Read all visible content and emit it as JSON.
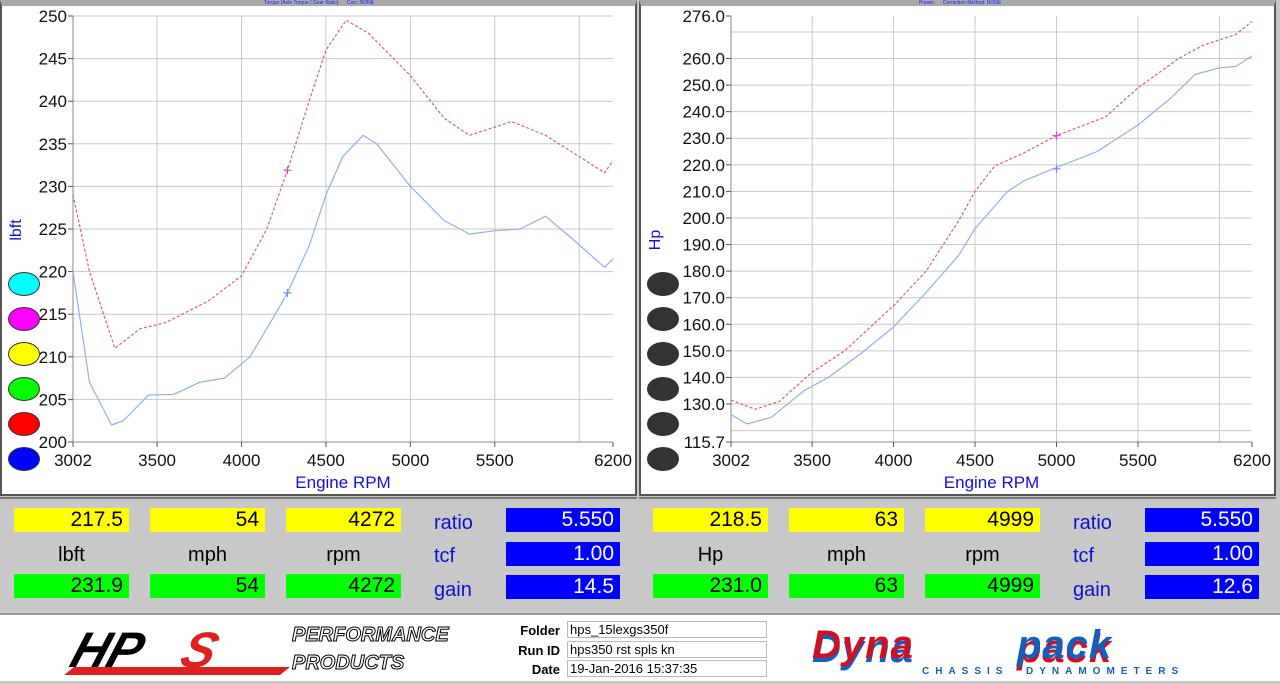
{
  "charts": [
    {
      "id": "left",
      "header": "Torque (Axle Torque / Gear Ratio)      Corr: NONE",
      "ylabel": "lbft",
      "xlabel": "Engine RPM",
      "xlim": [
        3002,
        6200
      ],
      "xticks": [
        "3002",
        "3500",
        "4000",
        "4500",
        "5000",
        "5500",
        "6200"
      ],
      "xgrid": [
        3500,
        4000,
        4500,
        5000,
        5500,
        6000
      ],
      "ylim": [
        200,
        250
      ],
      "yticks": [
        "250",
        "245",
        "240",
        "235",
        "230",
        "225",
        "220",
        "215",
        "210",
        "205",
        "200"
      ],
      "ygrid": [
        205,
        210,
        215,
        220,
        225,
        230,
        235,
        240,
        245,
        250
      ],
      "dot_colors": [
        "#00ffff",
        "#ff00ff",
        "#ffff00",
        "#00ff00",
        "#ff0000",
        "#0000ff"
      ],
      "series": [
        {
          "color": "#e06060",
          "dash": true,
          "points": [
            [
              3002,
              229
            ],
            [
              3100,
              220
            ],
            [
              3250,
              211
            ],
            [
              3400,
              213.3
            ],
            [
              3550,
              214
            ],
            [
              3800,
              216.5
            ],
            [
              4000,
              219.5
            ],
            [
              4150,
              225
            ],
            [
              4272,
              231.9
            ],
            [
              4400,
              240
            ],
            [
              4500,
              246
            ],
            [
              4620,
              249.5
            ],
            [
              4750,
              248
            ],
            [
              5000,
              243
            ],
            [
              5200,
              238
            ],
            [
              5350,
              236
            ],
            [
              5600,
              237.6
            ],
            [
              5800,
              236
            ],
            [
              6000,
              233.5
            ],
            [
              6150,
              231.6
            ],
            [
              6200,
              233
            ]
          ]
        },
        {
          "color": "#8fb0ee",
          "dash": false,
          "points": [
            [
              3002,
              220
            ],
            [
              3100,
              207
            ],
            [
              3230,
              202
            ],
            [
              3300,
              202.5
            ],
            [
              3450,
              205.5
            ],
            [
              3600,
              205.6
            ],
            [
              3750,
              207
            ],
            [
              3900,
              207.5
            ],
            [
              4050,
              210
            ],
            [
              4200,
              215
            ],
            [
              4272,
              217.5
            ],
            [
              4400,
              223
            ],
            [
              4500,
              229
            ],
            [
              4600,
              233.5
            ],
            [
              4720,
              236
            ],
            [
              4800,
              235
            ],
            [
              5000,
              230
            ],
            [
              5200,
              226
            ],
            [
              5350,
              224.4
            ],
            [
              5500,
              224.8
            ],
            [
              5650,
              225
            ],
            [
              5800,
              226.5
            ],
            [
              5950,
              224
            ],
            [
              6150,
              220.5
            ],
            [
              6200,
              221.5
            ]
          ]
        }
      ],
      "cursor": [
        [
          4272,
          231.9,
          "#e040e0"
        ],
        [
          4272,
          217.5,
          "#8080ff"
        ]
      ]
    },
    {
      "id": "right",
      "header": "Power:      Correction Method: NONE",
      "ylabel": "Hp",
      "xlabel": "Engine RPM",
      "xlim": [
        3002,
        6200
      ],
      "xticks": [
        "3002",
        "3500",
        "4000",
        "4500",
        "5000",
        "5500",
        "6200"
      ],
      "xgrid": [
        3500,
        4000,
        4500,
        5000,
        5500,
        6000
      ],
      "ylim": [
        115.7,
        276.0
      ],
      "yticks": [
        "276.0",
        "260.0",
        "250.0",
        "240.0",
        "230.0",
        "220.0",
        "210.0",
        "200.0",
        "190.0",
        "180.0",
        "170.0",
        "160.0",
        "150.0",
        "140.0",
        "130.0",
        "115.7"
      ],
      "ygrid": [
        120,
        130,
        140,
        150,
        160,
        170,
        180,
        190,
        200,
        210,
        220,
        230,
        240,
        250,
        260,
        270
      ],
      "dot_colors": [
        "#333333",
        "#333333",
        "#333333",
        "#333333",
        "#333333",
        "#333333"
      ],
      "series": [
        {
          "color": "#e06060",
          "dash": true,
          "points": [
            [
              3002,
              131.5
            ],
            [
              3150,
              128
            ],
            [
              3300,
              131
            ],
            [
              3500,
              142
            ],
            [
              3700,
              150
            ],
            [
              4000,
              167
            ],
            [
              4200,
              180
            ],
            [
              4400,
              199
            ],
            [
              4500,
              210
            ],
            [
              4620,
              219.5
            ],
            [
              4800,
              224.5
            ],
            [
              5000,
              231
            ],
            [
              5300,
              238
            ],
            [
              5500,
              249
            ],
            [
              5750,
              260
            ],
            [
              5900,
              265
            ],
            [
              6100,
              269
            ],
            [
              6200,
              274
            ]
          ]
        },
        {
          "color": "#8fb0ee",
          "dash": false,
          "points": [
            [
              3002,
              126
            ],
            [
              3100,
              122.5
            ],
            [
              3250,
              125
            ],
            [
              3450,
              135
            ],
            [
              3600,
              140
            ],
            [
              3800,
              149
            ],
            [
              4000,
              159
            ],
            [
              4200,
              172
            ],
            [
              4400,
              186
            ],
            [
              4500,
              196
            ],
            [
              4700,
              210
            ],
            [
              4800,
              214
            ],
            [
              5000,
              219
            ],
            [
              5250,
              225
            ],
            [
              5500,
              235
            ],
            [
              5700,
              245
            ],
            [
              5850,
              254
            ],
            [
              6000,
              256.5
            ],
            [
              6100,
              257
            ],
            [
              6200,
              261
            ]
          ]
        }
      ],
      "cursor": [
        [
          5000,
          231.0,
          "#e040e0"
        ],
        [
          5000,
          218.5,
          "#8080ff"
        ]
      ]
    }
  ],
  "readouts": [
    {
      "y1": [
        "217.5",
        "54",
        "4272"
      ],
      "units": [
        "lbft",
        "mph",
        "rpm"
      ],
      "g1": [
        "231.9",
        "54",
        "4272"
      ],
      "labels": [
        "ratio",
        "tcf",
        "gain"
      ],
      "values": [
        "5.550",
        "1.00",
        "14.5"
      ]
    },
    {
      "y1": [
        "218.5",
        "63",
        "4999"
      ],
      "units": [
        "Hp",
        "mph",
        "rpm"
      ],
      "g1": [
        "231.0",
        "63",
        "4999"
      ],
      "labels": [
        "ratio",
        "tcf",
        "gain"
      ],
      "values": [
        "5.550",
        "1.00",
        "12.6"
      ]
    }
  ],
  "footer": {
    "hps_logo": "HPS",
    "hps_tag1": "PERFORMANCE",
    "hps_tag2": "PRODUCTS",
    "folder_label": "Folder",
    "folder": "hps_15lexgs350f",
    "runid_label": "Run ID",
    "runid": "hps350 rst spls kn",
    "date_label": "Date",
    "date": "19-Jan-2016  15:37:35",
    "dyna_logo1": "Dyna",
    "dyna_logo2": "pack",
    "dyna_tag": "CHASSIS  DYNAMOMETERS"
  }
}
